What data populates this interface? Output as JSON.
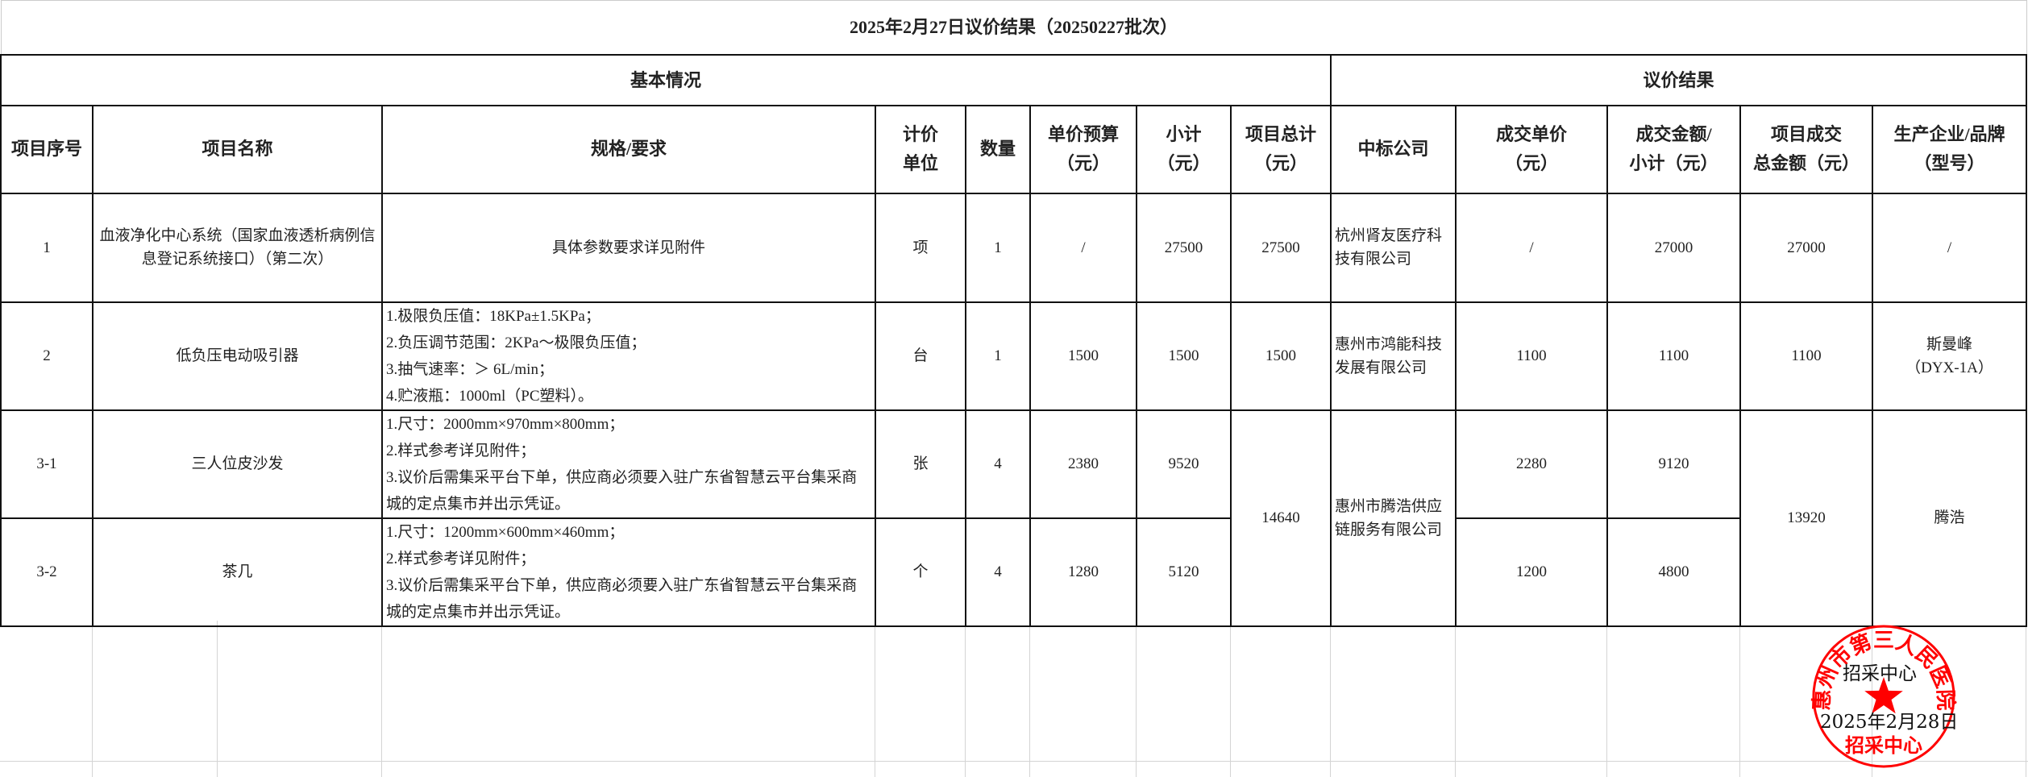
{
  "title": "2025年2月27日议价结果（20250227批次）",
  "sections": {
    "basic": "基本情况",
    "result": "议价结果"
  },
  "headers": [
    "项目序号",
    "项目名称",
    "规格/要求",
    "计价\n单位",
    "数量",
    "单价预算\n（元）",
    "小计\n（元）",
    "项目总计\n（元）",
    "中标公司",
    "成交单价\n（元）",
    "成交金额/\n小计（元）",
    "项目成交\n总金额（元）",
    "生产企业/品牌\n（型号）"
  ],
  "rows": [
    {
      "no": "1",
      "name": "血液净化中心系统（国家血液透析病例信息登记系统接口）（第二次）",
      "spec": [
        "具体参数要求详见附件"
      ],
      "unit": "项",
      "qty": "1",
      "budget_unit": "/",
      "subtotal": "27500",
      "project_total": "27500",
      "company": "杭州肾友医疗科技有限公司",
      "deal_unit": "/",
      "deal_amount": "27000",
      "deal_total": "27000",
      "brand": "/"
    },
    {
      "no": "2",
      "name": "低负压电动吸引器",
      "spec": [
        "1.极限负压值：18KPa±1.5KPa；",
        "2.负压调节范围：2KPa～极限负压值；",
        "3.抽气速率：＞ 6L/min；",
        "4.贮液瓶：1000ml（PC塑料）。"
      ],
      "unit": "台",
      "qty": "1",
      "budget_unit": "1500",
      "subtotal": "1500",
      "project_total": "1500",
      "company": "惠州市鸿能科技发展有限公司",
      "deal_unit": "1100",
      "deal_amount": "1100",
      "deal_total": "1100",
      "brand": "斯曼峰\n（DYX-1A）"
    },
    {
      "no": "3-1",
      "name": "三人位皮沙发",
      "spec": [
        "1.尺寸：2000mm×970mm×800mm；",
        "2.样式参考详见附件；",
        "3.议价后需集采平台下单，供应商必须要入驻广东省智慧云平台集采商城的定点集市并出示凭证。"
      ],
      "unit": "张",
      "qty": "4",
      "budget_unit": "2380",
      "subtotal": "9520",
      "project_total": "14640",
      "company": "惠州市腾浩供应链服务有限公司",
      "deal_unit": "2280",
      "deal_amount": "9120",
      "deal_total": "13920",
      "brand": "腾浩"
    },
    {
      "no": "3-2",
      "name": "茶几",
      "spec": [
        "1.尺寸：1200mm×600mm×460mm；",
        "2.样式参考详见附件；",
        "3.议价后需集采平台下单，供应商必须要入驻广东省智慧云平台集采商城的定点集市并出示凭证。"
      ],
      "unit": "个",
      "qty": "4",
      "budget_unit": "1280",
      "subtotal": "5120",
      "deal_unit": "1200",
      "deal_amount": "4800"
    }
  ],
  "seal": {
    "ring_text": "惠州市第三人民医院",
    "bottom_text": "招采中心",
    "overlay_label": "招采中心",
    "overlay_date": "2025年2月28日",
    "color": "#ff0000"
  }
}
